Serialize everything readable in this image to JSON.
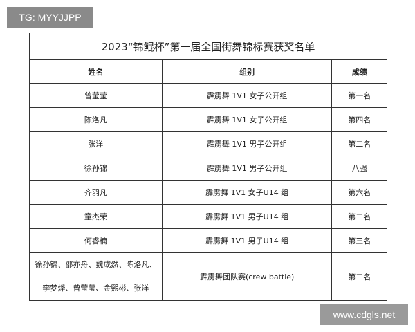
{
  "watermark_top": "TG: MYYJJPP",
  "watermark_bottom": "www.cdgls.net",
  "table": {
    "title": "2023“锦鲲杯”第一届全国街舞锦标赛获奖名单",
    "headers": [
      "姓名",
      "组别",
      "成绩"
    ],
    "rows": [
      [
        "曾莹莹",
        "霹雳舞 1V1 女子公开组",
        "第一名"
      ],
      [
        "陈洛凡",
        "霹雳舞 1V1 女子公开组",
        "第四名"
      ],
      [
        "张洋",
        "霹雳舞 1V1 男子公开组",
        "第二名"
      ],
      [
        "徐孙锦",
        "霹雳舞 1V1 男子公开组",
        "八强"
      ],
      [
        "齐羽凡",
        "霹雳舞 1V1 女子U14 组",
        "第六名"
      ],
      [
        "童杰荣",
        "霹雳舞 1V1 男子U14 组",
        "第二名"
      ],
      [
        "何睿楠",
        "霹雳舞 1V1 男子U14 组",
        "第三名"
      ]
    ],
    "team_row": {
      "names_line1": "徐孙锦、邵亦舟、魏成然、陈洛凡、",
      "names_line2": "李梦烨、曾莹莹、金熙彬、张洋",
      "group": "霹雳舞团队赛(crew battle)",
      "result": "第二名"
    }
  }
}
